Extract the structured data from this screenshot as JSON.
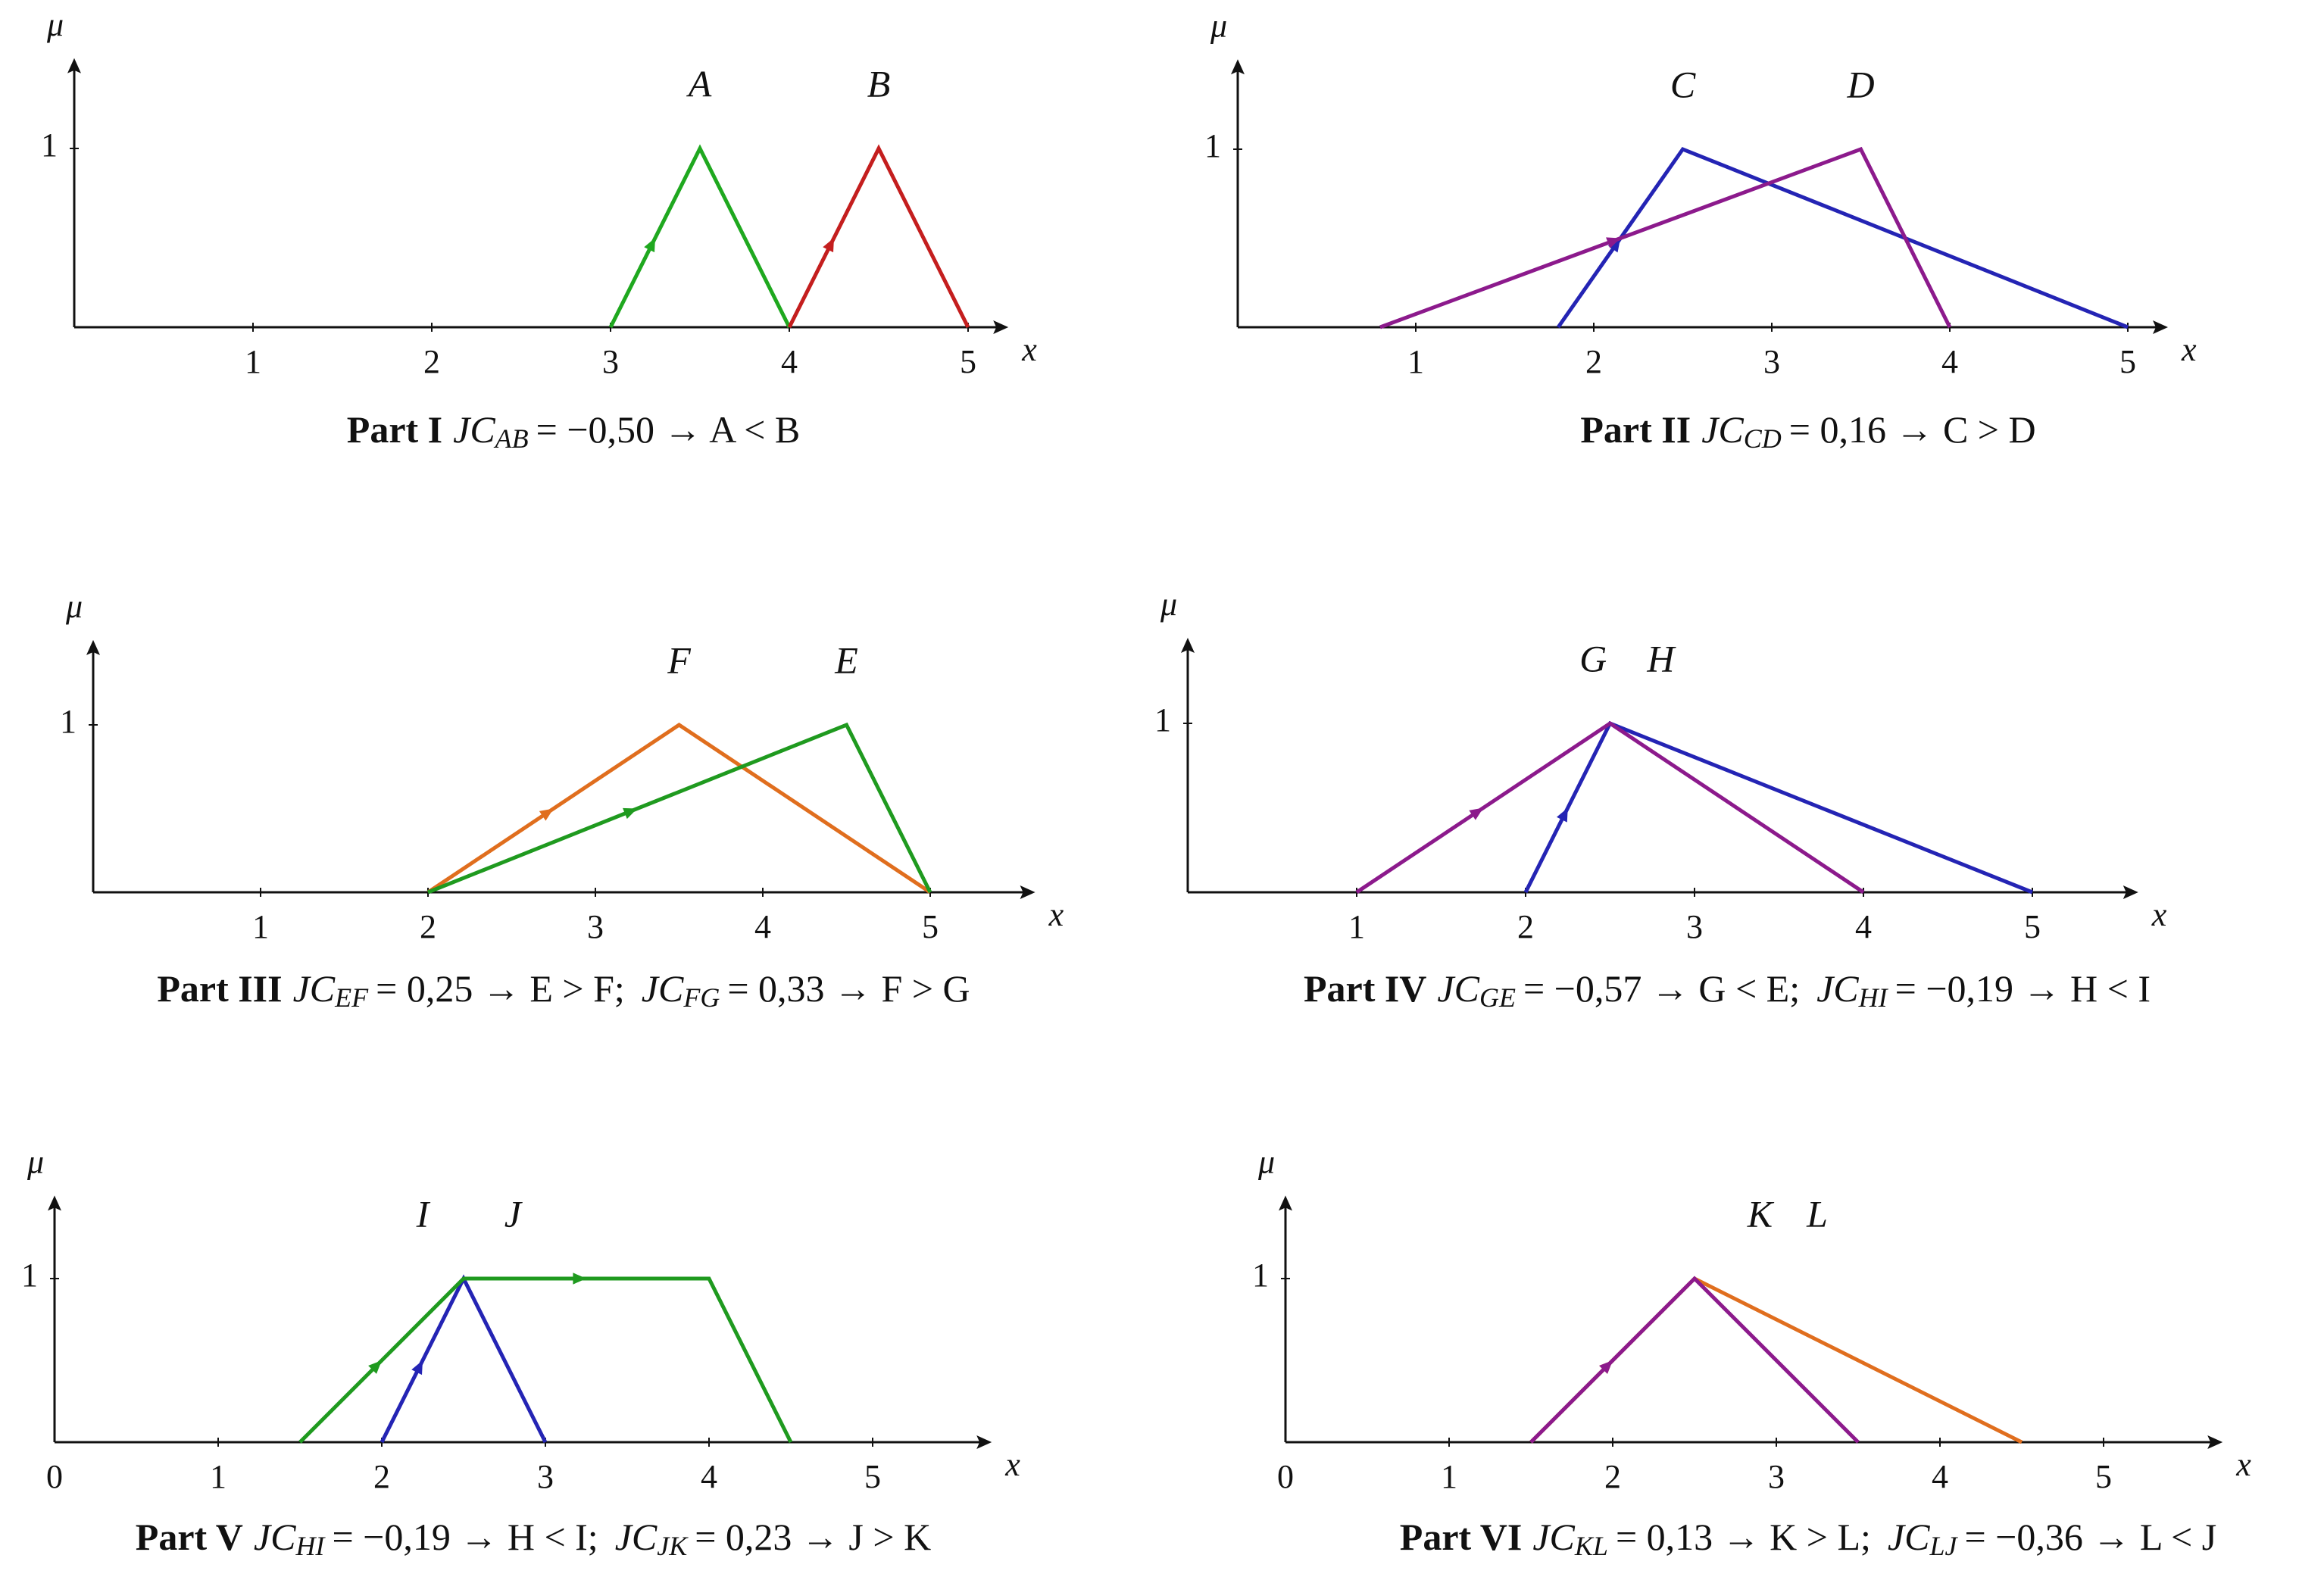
{
  "chart_data": [
    {
      "type": "line",
      "ylabel": "μ",
      "xlabel": "x",
      "xlim": [
        0,
        5.2
      ],
      "ylim": [
        0,
        1.48
      ],
      "xticks": [
        1,
        2,
        3,
        4,
        5
      ],
      "yticks": [
        1
      ],
      "series": [
        {
          "name": "A",
          "color": "#1fa81f",
          "x": [
            3,
            3.5,
            4
          ],
          "values": [
            0,
            1,
            0
          ]
        },
        {
          "name": "B",
          "color": "#c41e1e",
          "x": [
            4,
            4.5,
            5
          ],
          "values": [
            0,
            1,
            0
          ]
        }
      ],
      "caption": {
        "label": "Part I",
        "terms": [
          {
            "base": "JC",
            "sub": "AB",
            "rest": "= −0,50 → A < B"
          }
        ]
      }
    },
    {
      "type": "line",
      "ylabel": "μ",
      "xlabel": "x",
      "xlim": [
        0,
        5.2
      ],
      "ylim": [
        0,
        1.48
      ],
      "xticks": [
        1,
        2,
        3,
        4,
        5
      ],
      "yticks": [
        1
      ],
      "series": [
        {
          "name": "C",
          "color": "#2424b4",
          "x": [
            1.8,
            2.5,
            5
          ],
          "values": [
            0,
            1,
            0
          ]
        },
        {
          "name": "D",
          "color": "#8c1a8c",
          "x": [
            0.8,
            3.5,
            4
          ],
          "values": [
            0,
            1,
            0
          ]
        }
      ],
      "caption": {
        "label": "Part II",
        "terms": [
          {
            "base": "JC",
            "sub": "CD",
            "rest": "= 0,16 → C > D"
          }
        ]
      }
    },
    {
      "type": "line",
      "ylabel": "μ",
      "xlabel": "x",
      "xlim": [
        0,
        5.6
      ],
      "ylim": [
        0,
        1.48
      ],
      "xticks": [
        1,
        2,
        3,
        4,
        5
      ],
      "yticks": [
        1
      ],
      "series": [
        {
          "name": "F",
          "color": "#e06e1e",
          "x": [
            2,
            3.5,
            5
          ],
          "values": [
            0,
            1,
            0
          ]
        },
        {
          "name": "E",
          "color": "#1f9a1f",
          "x": [
            2,
            4.5,
            5
          ],
          "values": [
            0,
            1,
            0
          ]
        }
      ],
      "caption": {
        "label": "Part III",
        "terms": [
          {
            "base": "JC",
            "sub": "EF",
            "rest": "= 0,25 → E > F;"
          },
          {
            "base": "JC",
            "sub": "FG",
            "rest": "= 0,33 → F > G"
          }
        ]
      }
    },
    {
      "type": "line",
      "ylabel": "μ",
      "xlabel": "x",
      "xlim": [
        0,
        5.6
      ],
      "ylim": [
        0,
        1.48
      ],
      "xticks": [
        1,
        2,
        3,
        4,
        5
      ],
      "yticks": [
        1
      ],
      "series": [
        {
          "name": "G",
          "color": "#2424b4",
          "x": [
            2,
            2.5,
            5
          ],
          "values": [
            0,
            1,
            0
          ]
        },
        {
          "name": "H",
          "color": "#8c1a8c",
          "x": [
            1,
            2.5,
            4
          ],
          "values": [
            0,
            1,
            0
          ]
        }
      ],
      "caption": {
        "label": "Part IV",
        "terms": [
          {
            "base": "JC",
            "sub": "GE",
            "rest": "= −0,57 → G < E;"
          },
          {
            "base": "JC",
            "sub": "HI",
            "rest": "= −0,19 → H < I"
          }
        ]
      }
    },
    {
      "type": "line",
      "ylabel": "μ",
      "xlabel": "x",
      "xlim": [
        0,
        5.7
      ],
      "ylim": [
        0,
        1.48
      ],
      "xticks": [
        0,
        1,
        2,
        3,
        4,
        5
      ],
      "yticks": [
        1
      ],
      "series": [
        {
          "name": "I",
          "color": "#2424b4",
          "x": [
            2,
            2.5,
            3
          ],
          "values": [
            0,
            1,
            0
          ]
        },
        {
          "name": "J",
          "color": "#1f9a1f",
          "x": [
            1.5,
            2.5,
            4,
            4.5
          ],
          "values": [
            0,
            1,
            1,
            0
          ]
        }
      ],
      "caption": {
        "label": "Part V",
        "terms": [
          {
            "base": "JC",
            "sub": "HI",
            "rest": "= −0,19 → H < I;"
          },
          {
            "base": "JC",
            "sub": "JK",
            "rest": "= 0,23 → J > K"
          }
        ]
      }
    },
    {
      "type": "line",
      "ylabel": "μ",
      "xlabel": "x",
      "xlim": [
        0,
        5.7
      ],
      "ylim": [
        0,
        1.48
      ],
      "xticks": [
        0,
        1,
        2,
        3,
        4,
        5
      ],
      "yticks": [
        1
      ],
      "series": [
        {
          "name": "K",
          "color": "#e06e1e",
          "x": [
            1.5,
            2.5,
            4.5
          ],
          "values": [
            0,
            1,
            0
          ]
        },
        {
          "name": "L",
          "color": "#8c1a8c",
          "x": [
            1.5,
            2.5,
            3.5
          ],
          "values": [
            0,
            1,
            0
          ]
        }
      ],
      "caption": {
        "label": "Part VI",
        "terms": [
          {
            "base": "JC",
            "sub": "KL",
            "rest": "= 0,13 → K > L;"
          },
          {
            "base": "JC",
            "sub": "LJ",
            "rest": "= −0,36 → L < J"
          }
        ]
      }
    }
  ]
}
